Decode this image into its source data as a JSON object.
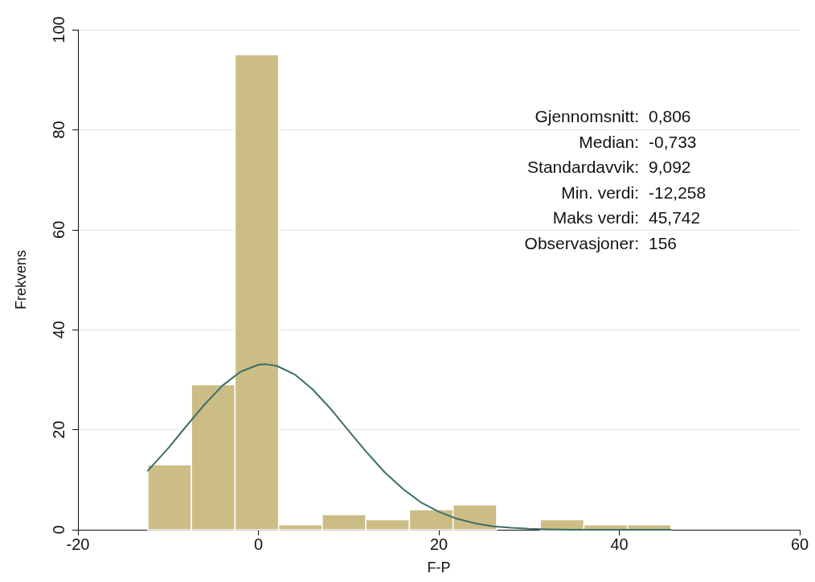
{
  "chart_data": {
    "type": "histogram",
    "xlabel": "F-P",
    "ylabel": "Frekvens",
    "bins": [
      -12.258,
      -7.425,
      -2.591,
      2.242,
      7.075,
      11.909,
      16.742,
      21.575,
      26.409,
      31.242,
      36.075,
      40.909,
      45.742
    ],
    "values": [
      13,
      29,
      95,
      1,
      3,
      2,
      4,
      5,
      0,
      2,
      1,
      1
    ],
    "color": "#cbbd85",
    "series": [
      {
        "type": "line",
        "color": "#3a6e6a",
        "marker": "none",
        "x": [
          -12.258,
          -10,
          -8,
          -6,
          -4,
          -2,
          0,
          0.806,
          2,
          4,
          6,
          8,
          10,
          12,
          14,
          16,
          18,
          20,
          22,
          24,
          26,
          28,
          30,
          32,
          35,
          40,
          45.742
        ],
        "values": [
          11.8,
          16.3,
          20.7,
          25.0,
          28.8,
          31.6,
          33.0,
          33.1,
          32.8,
          31.1,
          28.1,
          24.2,
          19.8,
          15.5,
          11.5,
          8.2,
          5.5,
          3.6,
          2.2,
          1.3,
          0.7,
          0.4,
          0.2,
          0.1,
          0,
          0,
          0
        ]
      }
    ],
    "xlim": [
      -20,
      60
    ],
    "xticks": [
      -20,
      0,
      20,
      40,
      60
    ],
    "ylim": [
      0,
      100
    ],
    "yticks": [
      0,
      20,
      40,
      60,
      80,
      100
    ],
    "grid": "y",
    "annotations": [
      "Gjennomsnitt: 0,806",
      "Median: -0,733",
      "Standardavvik: 9,092",
      "Min. verdi: -12,258",
      "Maks verdi: 45,742",
      "Observasjoner: 156"
    ]
  }
}
